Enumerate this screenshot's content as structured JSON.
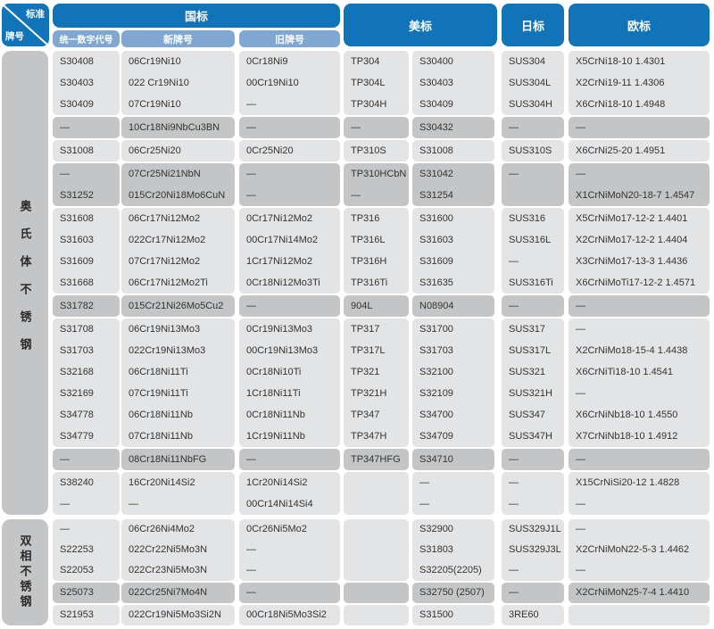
{
  "corner": {
    "top": "标准",
    "bottom": "牌号"
  },
  "headers": {
    "gb": "国标",
    "gb_sub": [
      "统一数字代号",
      "新牌号",
      "旧牌号"
    ],
    "us": "美标",
    "jp": "日标",
    "eu": "欧标"
  },
  "colors": {
    "header_blue": "#1173b8",
    "subheader_blue": "#7fa7d1",
    "cell_light": "#e3e4e6",
    "cell_dark": "#c3c5c7",
    "text": "#333333"
  },
  "sections": [
    {
      "label": "奥氏体不锈钢",
      "rows": [
        {
          "shade": "light",
          "gapAfter": false,
          "cells": [
            "S30408",
            "06Cr19Ni10",
            "0Cr18Ni9",
            "TP304",
            "S30400",
            "SUS304",
            "X5CrNi18-10 1.4301"
          ]
        },
        {
          "shade": "light",
          "gapAfter": false,
          "cells": [
            "S30403",
            "022 Cr19Ni10",
            "00Cr19Ni10",
            "TP304L",
            "S30403",
            "SUS304L",
            "X2CrNi19-11 1.4306"
          ]
        },
        {
          "shade": "light",
          "gapAfter": true,
          "cells": [
            "S30409",
            "07Cr19Ni10",
            "—",
            "TP304H",
            "S30409",
            "SUS304H",
            "X6CrNi18-10 1.4948"
          ]
        },
        {
          "shade": "dark",
          "gapAfter": true,
          "cells": [
            "—",
            "10Cr18Ni9NbCu3BN",
            "—",
            "—",
            "S30432",
            "—",
            "—"
          ]
        },
        {
          "shade": "light",
          "gapAfter": true,
          "cells": [
            "S31008",
            "06Cr25Ni20",
            "0Cr25Ni20",
            "TP310S",
            "S31008",
            "SUS310S",
            "X6CrNi25-20 1.4951"
          ]
        },
        {
          "shade": "dark",
          "gapAfter": false,
          "cells": [
            "—",
            "07Cr25Ni21NbN",
            "—",
            "TP310HCbN",
            "S31042",
            "—",
            "—"
          ]
        },
        {
          "shade": "dark",
          "gapAfter": true,
          "cells": [
            "S31252",
            "015Cr20Ni18Mo6CuN",
            "—",
            "—",
            "S31254",
            "",
            "X1CrNiMoN20-18-7 1.4547"
          ]
        },
        {
          "shade": "light",
          "gapAfter": false,
          "cells": [
            "S31608",
            "06Cr17Ni12Mo2",
            "0Cr17Ni12Mo2",
            "TP316",
            "S31600",
            "SUS316",
            "X5CrNiMo17-12-2 1.4401"
          ]
        },
        {
          "shade": "light",
          "gapAfter": false,
          "cells": [
            "S31603",
            "022Cr17Ni12Mo2",
            "00Cr17Ni14Mo2",
            "TP316L",
            "S31603",
            "SUS316L",
            "X2CrNiMo17-12-2 1.4404"
          ]
        },
        {
          "shade": "light",
          "gapAfter": false,
          "cells": [
            "S31609",
            "07Cr17Ni12Mo2",
            "1Cr17Ni12Mo2",
            "TP316H",
            "S31609",
            "—",
            "X3CrNiMo17-13-3 1.4436"
          ]
        },
        {
          "shade": "light",
          "gapAfter": true,
          "cells": [
            "S31668",
            "06Cr17Ni12Mo2Ti",
            "0Cr18Ni12Mo3Ti",
            "TP316Ti",
            "S31635",
            "SUS316Ti",
            "X6CrNiMoTi17-12-2 1.4571"
          ]
        },
        {
          "shade": "dark",
          "gapAfter": true,
          "cells": [
            "S31782",
            "015Cr21Ni26Mo5Cu2",
            "—",
            "904L",
            "N08904",
            "—",
            "—"
          ]
        },
        {
          "shade": "light",
          "gapAfter": false,
          "cells": [
            "S31708",
            "06Cr19Ni13Mo3",
            "0Cr19Ni13Mo3",
            "TP317",
            "S31700",
            "SUS317",
            "—"
          ]
        },
        {
          "shade": "light",
          "gapAfter": false,
          "cells": [
            "S31703",
            "022Cr19Ni13Mo3",
            "00Cr19Ni13Mo3",
            "TP317L",
            "S31703",
            "SUS317L",
            "X2CrNiMo18-15-4 1.4438"
          ]
        },
        {
          "shade": "light",
          "gapAfter": false,
          "cells": [
            "S32168",
            "06Cr18Ni11Ti",
            "0Cr18Ni10Ti",
            "TP321",
            "S32100",
            "SUS321",
            "X6CrNiTi18-10 1.4541"
          ]
        },
        {
          "shade": "light",
          "gapAfter": false,
          "cells": [
            "S32169",
            "07Cr19Ni11Ti",
            "1Cr18Ni11Ti",
            "TP321H",
            "S32109",
            "SUS321H",
            "—"
          ]
        },
        {
          "shade": "light",
          "gapAfter": false,
          "cells": [
            "S34778",
            "06Cr18Ni11Nb",
            "0Cr18Ni11Nb",
            "TP347",
            "S34700",
            "SUS347",
            "X6CrNiNb18-10 1.4550"
          ]
        },
        {
          "shade": "light",
          "gapAfter": true,
          "cells": [
            "S34779",
            "07Cr18Ni11Nb",
            "1Cr19Ni11Nb",
            "TP347H",
            "S34709",
            "SUS347H",
            "X7CrNiNb18-10 1.4912"
          ]
        },
        {
          "shade": "dark",
          "gapAfter": true,
          "cells": [
            "—",
            "08Cr18Ni11NbFG",
            "—",
            "TP347HFG",
            "S34710",
            "—",
            "—"
          ]
        },
        {
          "shade": "light",
          "gapAfter": false,
          "cells": [
            "S38240",
            "16Cr20Ni14Si2",
            "1Cr20Ni14Si2",
            "",
            "—",
            "—",
            "X15CrNiSi20-12 1.4828"
          ]
        },
        {
          "shade": "light",
          "gapAfter": false,
          "cells": [
            "—",
            "—",
            "00Cr14Ni14Si4",
            "",
            "—",
            "—",
            "—"
          ]
        }
      ]
    },
    {
      "label": "双相不锈钢",
      "rows": [
        {
          "shade": "light",
          "gapAfter": false,
          "cells": [
            "—",
            "06Cr26Ni4Mo2",
            "0Cr26Ni5Mo2",
            "",
            "S32900",
            "SUS329J1L",
            "—"
          ]
        },
        {
          "shade": "light",
          "gapAfter": false,
          "cells": [
            "S22253",
            "022Cr22Ni5Mo3N",
            "—",
            "",
            "S31803",
            "SUS329J3L",
            "X2CrNiMoN22-5-3 1.4462"
          ]
        },
        {
          "shade": "light",
          "gapAfter": true,
          "cells": [
            "S22053",
            "022Cr23Ni5Mo3N",
            "—",
            "",
            "S32205(2205)",
            "—",
            "—"
          ]
        },
        {
          "shade": "dark",
          "gapAfter": true,
          "cells": [
            "S25073",
            "022Cr25Ni7Mo4N",
            "—",
            "",
            "S32750 (2507)",
            "—",
            "X2CrNiMoN25-7-4 1.4410"
          ]
        },
        {
          "shade": "light",
          "gapAfter": false,
          "cells": [
            "S21953",
            "022Cr19Ni5Mo3Si2N",
            "00Cr18Ni5Mo3Si2",
            "",
            "S31500",
            "3RE60",
            ""
          ]
        }
      ]
    }
  ]
}
